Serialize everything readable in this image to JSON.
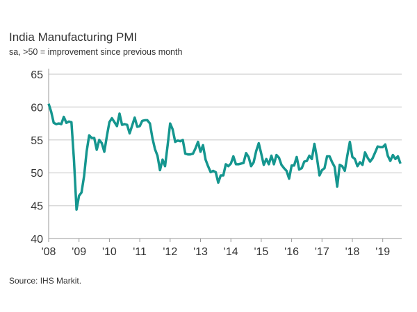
{
  "chart_data": {
    "type": "line",
    "title": "India Manufacturing PMI",
    "subtitle": "sa, >50 = improvement since previous month",
    "source": "Source: IHS Markit.",
    "ylim": [
      40,
      65
    ],
    "yticks": [
      40,
      45,
      50,
      55,
      60,
      65
    ],
    "xticks": [
      "'08",
      "'09",
      "'10",
      "'11",
      "'12",
      "'13",
      "'14",
      "'15",
      "'16",
      "'17",
      "'18",
      "'19"
    ],
    "x_start": "2008-01",
    "frequency": "monthly",
    "grid": true,
    "color": "#15968f",
    "values": [
      60.5,
      59.3,
      57.6,
      57.4,
      57.5,
      57.4,
      58.5,
      57.6,
      57.8,
      57.7,
      52.0,
      44.4,
      46.5,
      47.0,
      49.5,
      53.2,
      55.7,
      55.3,
      55.3,
      53.5,
      55.0,
      54.5,
      53.2,
      55.6,
      57.7,
      58.3,
      57.7,
      57.1,
      59.0,
      57.3,
      57.4,
      57.3,
      56.0,
      57.2,
      58.4,
      57.0,
      57.1,
      57.9,
      58.0,
      58.0,
      57.5,
      55.3,
      53.6,
      52.6,
      50.4,
      52.0,
      51.0,
      54.2,
      57.5,
      56.6,
      54.7,
      54.9,
      54.8,
      55.0,
      52.9,
      52.8,
      52.8,
      52.9,
      53.7,
      54.7,
      53.2,
      54.2,
      52.0,
      51.0,
      50.1,
      50.3,
      50.1,
      48.5,
      49.6,
      49.6,
      51.3,
      51.0,
      51.4,
      52.5,
      51.3,
      51.3,
      51.4,
      51.5,
      53.0,
      52.4,
      51.0,
      51.6,
      53.3,
      54.5,
      52.9,
      51.2,
      52.1,
      51.3,
      52.6,
      51.3,
      52.7,
      52.3,
      51.2,
      50.7,
      50.3,
      49.1,
      51.1,
      51.1,
      52.4,
      50.5,
      50.7,
      51.7,
      51.8,
      52.6,
      52.1,
      54.4,
      52.3,
      49.6,
      50.4,
      50.7,
      52.5,
      52.5,
      51.6,
      50.9,
      47.9,
      51.2,
      51.0,
      50.3,
      52.6,
      54.7,
      52.4,
      52.1,
      51.0,
      51.6,
      51.2,
      53.1,
      52.3,
      51.7,
      52.2,
      53.1,
      54.0,
      53.9,
      53.9,
      54.3,
      52.6,
      51.8,
      52.7,
      52.1,
      52.5,
      51.4
    ]
  }
}
